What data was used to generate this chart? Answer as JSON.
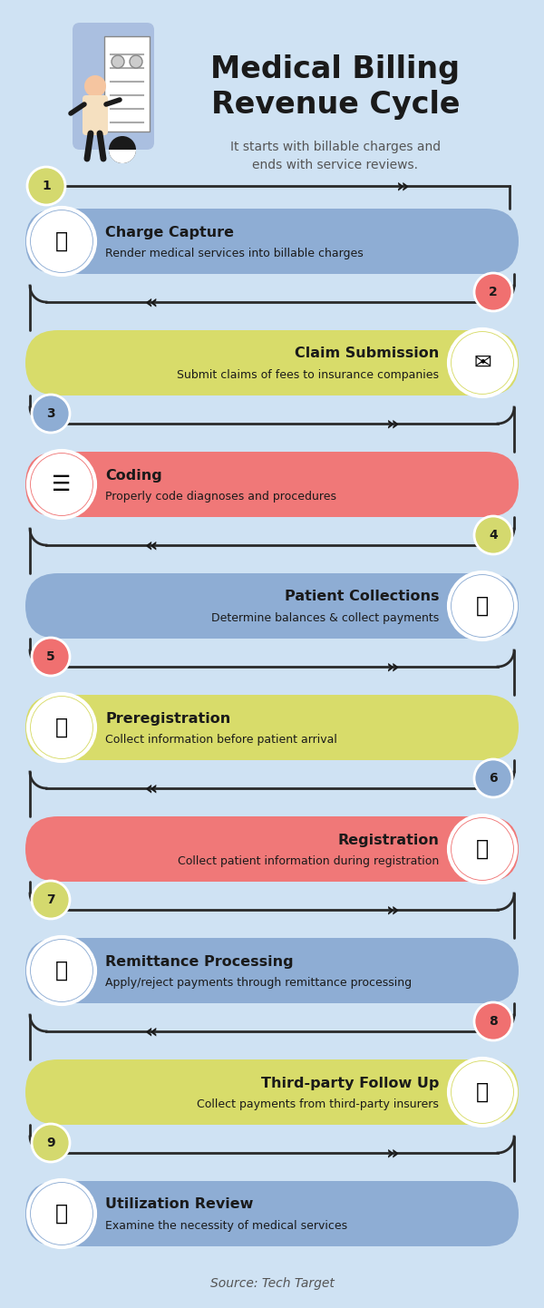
{
  "title": "Medical Billing\nRevenue Cycle",
  "subtitle": "It starts with billable charges and\nends with service reviews.",
  "background_color": "#cfe2f3",
  "source": "Source: Tech Target",
  "steps": [
    {
      "number": 1,
      "title": "Charge Capture",
      "description": "Render medical services into billable charges",
      "color": "#8eadd4",
      "number_bg": "#d4d96e",
      "icon_side": "left",
      "direction": "right"
    },
    {
      "number": 2,
      "title": "Claim Submission",
      "description": "Submit claims of fees to insurance companies",
      "color": "#d8dc6a",
      "number_bg": "#f07070",
      "icon_side": "right",
      "direction": "left"
    },
    {
      "number": 3,
      "title": "Coding",
      "description": "Properly code diagnoses and procedures",
      "color": "#f07878",
      "number_bg": "#8eadd4",
      "icon_side": "left",
      "direction": "right"
    },
    {
      "number": 4,
      "title": "Patient Collections",
      "description": "Determine balances & collect payments",
      "color": "#8eadd4",
      "number_bg": "#d4d96e",
      "icon_side": "right",
      "direction": "left"
    },
    {
      "number": 5,
      "title": "Preregistration",
      "description": "Collect information before patient arrival",
      "color": "#d8dc6a",
      "number_bg": "#f07070",
      "icon_side": "left",
      "direction": "right"
    },
    {
      "number": 6,
      "title": "Registration",
      "description": "Collect patient information during registration",
      "color": "#f07878",
      "number_bg": "#8eadd4",
      "icon_side": "right",
      "direction": "left"
    },
    {
      "number": 7,
      "title": "Remittance Processing",
      "description": "Apply/reject payments through remittance processing",
      "color": "#8eadd4",
      "number_bg": "#d4d96e",
      "icon_side": "left",
      "direction": "right"
    },
    {
      "number": 8,
      "title": "Third-party Follow Up",
      "description": "Collect payments from third-party insurers",
      "color": "#d8dc6a",
      "number_bg": "#f07070",
      "icon_side": "right",
      "direction": "left"
    },
    {
      "number": 9,
      "title": "Utilization Review",
      "description": "Examine the necessity of medical services",
      "color": "#8eadd4",
      "number_bg": "#d4d96e",
      "icon_side": "left",
      "direction": "right"
    }
  ]
}
